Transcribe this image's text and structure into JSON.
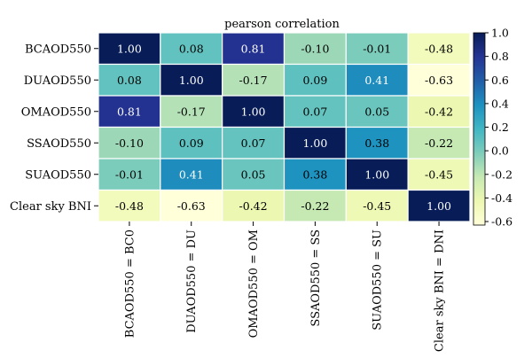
{
  "chart_data": {
    "type": "heatmap",
    "title": "pearson correlation",
    "row_labels": [
      "BCAOD550",
      "DUAOD550",
      "OMAOD550",
      "SSAOD550",
      "SUAOD550",
      "Clear sky BNI"
    ],
    "col_labels": [
      "BCAOD550 = BC0",
      "DUAOD550 = DU",
      "OMAOD550 = OM",
      "SSAOD550 = SS",
      "SUAOD550 = SU",
      "Clear sky BNI = DNI"
    ],
    "values": [
      [
        1.0,
        0.08,
        0.81,
        -0.1,
        -0.01,
        -0.48
      ],
      [
        0.08,
        1.0,
        -0.17,
        0.09,
        0.41,
        -0.63
      ],
      [
        0.81,
        -0.17,
        1.0,
        0.07,
        0.05,
        -0.42
      ],
      [
        -0.1,
        0.09,
        0.07,
        1.0,
        0.38,
        -0.22
      ],
      [
        -0.01,
        0.41,
        0.05,
        0.38,
        1.0,
        -0.45
      ],
      [
        -0.48,
        -0.63,
        -0.42,
        -0.22,
        -0.45,
        1.0
      ]
    ],
    "value_labels": [
      [
        "1.00",
        "0.08",
        "0.81",
        "-0.10",
        "-0.01",
        "-0.48"
      ],
      [
        "0.08",
        "1.00",
        "-0.17",
        "0.09",
        "0.41",
        "-0.63"
      ],
      [
        "0.81",
        "-0.17",
        "1.00",
        "0.07",
        "0.05",
        "-0.42"
      ],
      [
        "-0.10",
        "0.09",
        "0.07",
        "1.00",
        "0.38",
        "-0.22"
      ],
      [
        "-0.01",
        "0.41",
        "0.05",
        "0.38",
        "1.00",
        "-0.45"
      ],
      [
        "-0.48",
        "-0.63",
        "-0.42",
        "-0.22",
        "-0.45",
        "1.00"
      ]
    ],
    "colorbar": {
      "colormap": "YlGnBu",
      "vmin": -0.63,
      "vmax": 1.0,
      "ticks": [
        1.0,
        0.8,
        0.6,
        0.4,
        0.2,
        0.0,
        -0.2,
        -0.4,
        -0.6
      ],
      "tick_labels": [
        "1.0",
        "0.8",
        "0.6",
        "0.4",
        "0.2",
        "0.0",
        "-0.2",
        "-0.4",
        "-0.6"
      ],
      "placement": "right"
    },
    "grid": false
  }
}
